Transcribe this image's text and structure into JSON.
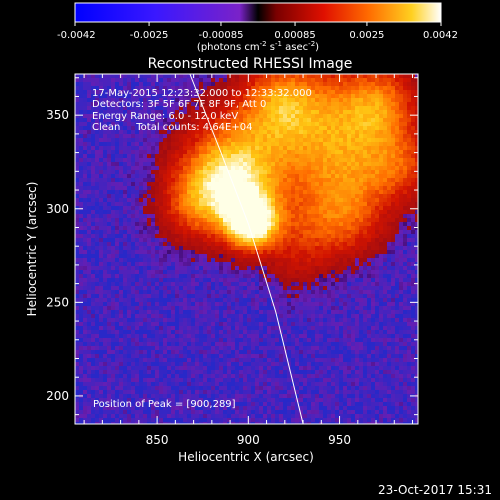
{
  "colorbar": {
    "ticks": [
      "-0.0042",
      "-0.0025",
      "-0.00085",
      "0.00085",
      "0.0025",
      "0.0042"
    ],
    "unit_parts": [
      "(photons cm",
      "-2",
      " s",
      "-1",
      " asec",
      "-2",
      ")"
    ]
  },
  "plot": {
    "title": "Reconstructed RHESSI Image",
    "info_lines": [
      "17-May-2015 12:23:32.000 to 12:33:32.000",
      "Detectors: 3F 5F 6F 7F 8F 9F, Att 0",
      "Energy Range: 6.0 - 12.0 keV",
      "Clean     Total counts: 4.64E+04"
    ],
    "peak_label": "Position of Peak = [900,289]",
    "footer_date": "23-Oct-2017 15:31"
  },
  "chart_data": {
    "type": "heatmap",
    "title": "Reconstructed RHESSI Image",
    "xlabel": "Heliocentric X (arcsec)",
    "ylabel": "Heliocentric Y (arcsec)",
    "xlim": [
      805,
      993
    ],
    "ylim": [
      185,
      372
    ],
    "xticks": [
      850,
      900,
      950
    ],
    "yticks": [
      200,
      250,
      300,
      350
    ],
    "colormap": "rhessi-dual",
    "vmin": -0.0042,
    "vmax": 0.0042,
    "peak": {
      "x": 900,
      "y": 289
    },
    "sources": [
      {
        "x": 902,
        "y": 292,
        "amp": 1.0,
        "sigma": 10
      },
      {
        "x": 893,
        "y": 308,
        "amp": 0.55,
        "sigma": 16
      },
      {
        "x": 880,
        "y": 318,
        "amp": 0.4,
        "sigma": 18
      },
      {
        "x": 868,
        "y": 300,
        "amp": 0.32,
        "sigma": 14
      },
      {
        "x": 903,
        "y": 335,
        "amp": 0.45,
        "sigma": 22
      },
      {
        "x": 938,
        "y": 348,
        "amp": 0.5,
        "sigma": 22
      },
      {
        "x": 972,
        "y": 355,
        "amp": 0.6,
        "sigma": 16
      },
      {
        "x": 955,
        "y": 318,
        "amp": 0.45,
        "sigma": 18
      },
      {
        "x": 985,
        "y": 322,
        "amp": 0.4,
        "sigma": 14
      },
      {
        "x": 935,
        "y": 290,
        "amp": 0.35,
        "sigma": 16
      },
      {
        "x": 958,
        "y": 292,
        "amp": 0.28,
        "sigma": 14
      },
      {
        "x": 925,
        "y": 270,
        "amp": 0.15,
        "sigma": 12
      },
      {
        "x": 918,
        "y": 360,
        "amp": 0.35,
        "sigma": 14
      }
    ],
    "limb_points": [
      [
        868,
        372
      ],
      [
        885,
        330
      ],
      [
        900,
        292
      ],
      [
        915,
        245
      ],
      [
        930,
        185
      ]
    ]
  }
}
